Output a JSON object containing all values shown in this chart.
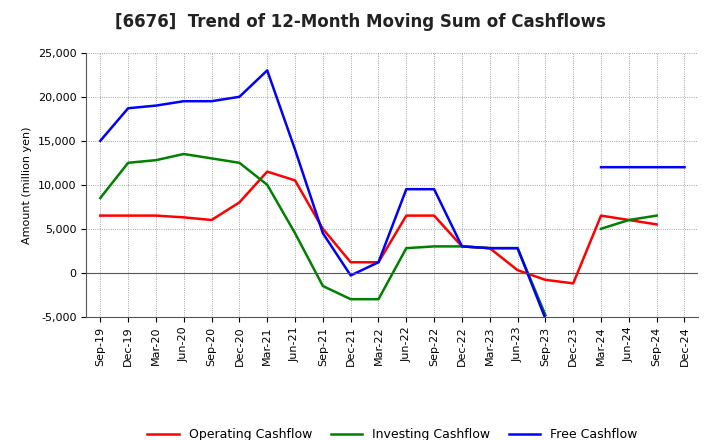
{
  "title": "[6676]  Trend of 12-Month Moving Sum of Cashflows",
  "ylabel": "Amount (million yen)",
  "xlabels": [
    "Sep-19",
    "Dec-19",
    "Mar-20",
    "Jun-20",
    "Sep-20",
    "Dec-20",
    "Mar-21",
    "Jun-21",
    "Sep-21",
    "Dec-21",
    "Mar-22",
    "Jun-22",
    "Sep-22",
    "Dec-22",
    "Mar-23",
    "Jun-23",
    "Sep-23",
    "Dec-23",
    "Mar-24",
    "Jun-24",
    "Sep-24",
    "Dec-24"
  ],
  "operating_cashflow": [
    6500,
    6500,
    6500,
    6300,
    6000,
    8000,
    11500,
    10500,
    5000,
    1200,
    1200,
    6500,
    6500,
    3000,
    2800,
    300,
    -800,
    -1200,
    6500,
    6000,
    5500,
    null
  ],
  "investing_cashflow": [
    8500,
    12500,
    12800,
    13500,
    13000,
    12500,
    10000,
    4500,
    -1500,
    -3000,
    -3000,
    2800,
    3000,
    3000,
    2800,
    2800,
    -4800,
    null,
    5000,
    6000,
    6500,
    null
  ],
  "free_cashflow": [
    15000,
    18700,
    19000,
    19500,
    19500,
    20000,
    23000,
    14000,
    4500,
    -300,
    1200,
    9500,
    9500,
    3000,
    2800,
    2800,
    -5200,
    null,
    12000,
    12000,
    12000,
    12000
  ],
  "operating_color": "#ff0000",
  "investing_color": "#008000",
  "free_color": "#0000ff",
  "ylim": [
    -5000,
    25000
  ],
  "yticks": [
    -5000,
    0,
    5000,
    10000,
    15000,
    20000,
    25000
  ],
  "bg_color": "#ffffff",
  "plot_bg_color": "#ffffff",
  "line_width": 1.8,
  "title_fontsize": 12,
  "legend_fontsize": 9,
  "tick_fontsize": 8
}
